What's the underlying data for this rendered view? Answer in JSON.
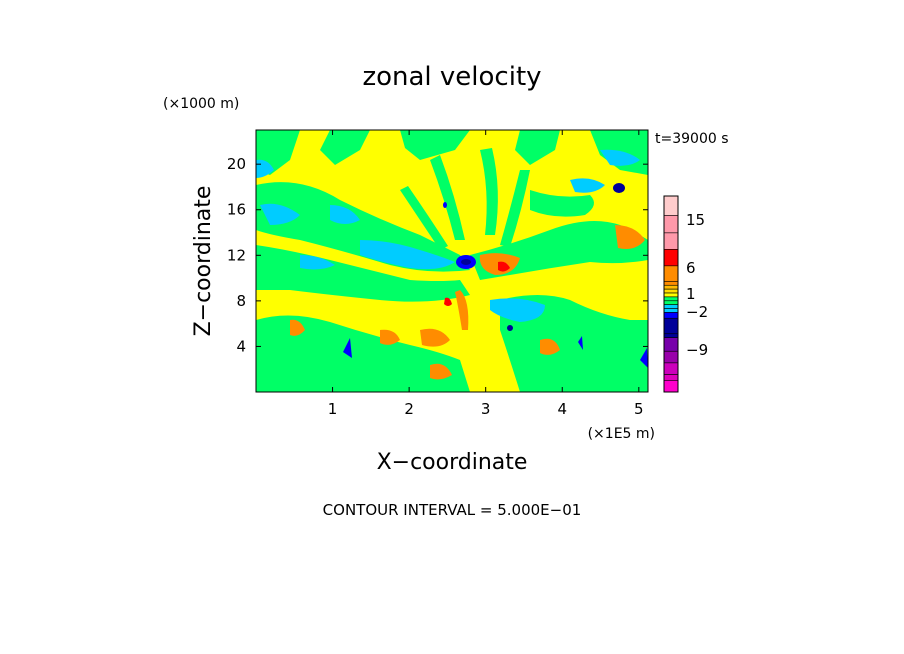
{
  "chart_data": {
    "type": "heatmap",
    "title": "zonal velocity",
    "xlabel": "X−coordinate",
    "ylabel": "Z−coordinate",
    "x_unit": "(×1E5 m)",
    "y_unit": "(×1000 m)",
    "time_label": "t=39000 s",
    "footer": "CONTOUR INTERVAL = 5.000E−01",
    "xlim": [
      0,
      5.12
    ],
    "ylim": [
      0,
      23
    ],
    "x_ticks": [
      1,
      2,
      3,
      4,
      5
    ],
    "y_ticks": [
      4,
      8,
      12,
      16,
      20
    ],
    "colorbar": {
      "levels": [
        "",
        "",
        "",
        "",
        "",
        "",
        "",
        "",
        "",
        "",
        "",
        "",
        "",
        "",
        "",
        "",
        "",
        "",
        "",
        "",
        ""
      ],
      "labels": [
        {
          "text": "15",
          "value": 15
        },
        {
          "text": "6",
          "value": 6
        },
        {
          "text": "1",
          "value": 1
        },
        {
          "text": "−2",
          "value": -2
        },
        {
          "text": "−9",
          "value": -9
        }
      ],
      "colors": {
        "magenta": "#ff00cc",
        "purple_dark": "#9900aa",
        "navy": "#000099",
        "blue": "#0000ff",
        "cyan": "#00ccff",
        "green": "#00ff66",
        "yellow": "#ffff00",
        "orange": "#ff8c00",
        "red": "#ff0000",
        "pink": "#ff99aa",
        "pink_light": "#ffcccc"
      }
    },
    "field_summary": {
      "background": "yellow",
      "dominant_bands": [
        "green",
        "yellow",
        "cyan"
      ],
      "features": [
        {
          "color": "blue",
          "x": 2.8,
          "z": 11.5
        },
        {
          "color": "blue",
          "x": 4.75,
          "z": 17.4
        },
        {
          "color": "blue",
          "x": 1.2,
          "z": 3.6
        },
        {
          "color": "blue",
          "x": 5.05,
          "z": 3.0
        },
        {
          "color": "orange",
          "x": 3.2,
          "z": 11.2
        },
        {
          "color": "orange",
          "x": 4.9,
          "z": 13.5
        }
      ]
    }
  }
}
